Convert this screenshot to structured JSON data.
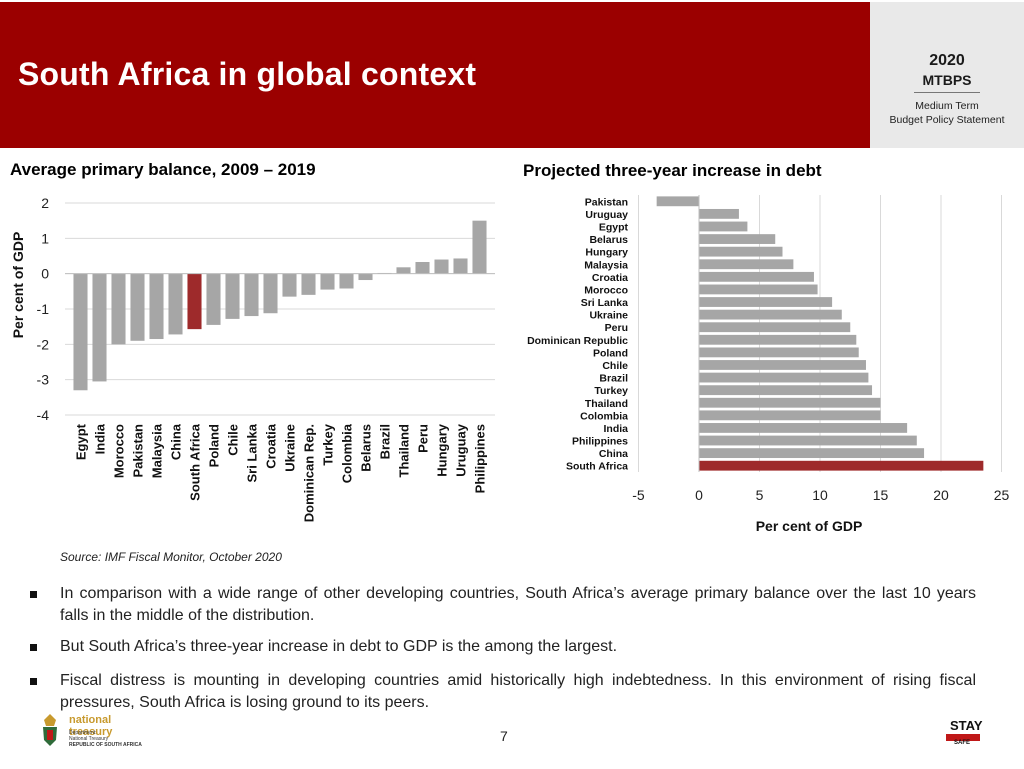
{
  "header": {
    "title": "South Africa in global context",
    "logo": {
      "year": "2020",
      "name": "MTBPS",
      "sub1": "Medium Term",
      "sub2": "Budget Policy Statement"
    }
  },
  "colors": {
    "header_red": "#9b0000",
    "bar_gray": "#a6a6a6",
    "highlight": "#9e2a2b"
  },
  "chart_data": [
    {
      "type": "bar",
      "title": "Average primary balance, 2009 – 2019",
      "ylabel": "Per cent of GDP",
      "xlabel": "",
      "ylim": [
        -4,
        2
      ],
      "yticks": [
        2,
        1,
        0,
        -1,
        -2,
        -3,
        -4
      ],
      "grid": true,
      "highlight": "South Africa",
      "categories": [
        "Egypt",
        "India",
        "Morocco",
        "Pakistan",
        "Malaysia",
        "China",
        "South Africa",
        "Poland",
        "Chile",
        "Sri Lanka",
        "Croatia",
        "Ukraine",
        "Dominican Rep.",
        "Turkey",
        "Colombia",
        "Belarus",
        "Brazil",
        "Thailand",
        "Peru",
        "Hungary",
        "Uruguay",
        "Philippines"
      ],
      "values": [
        -3.3,
        -3.05,
        -2.0,
        -1.9,
        -1.85,
        -1.72,
        -1.57,
        -1.45,
        -1.28,
        -1.2,
        -1.12,
        -0.65,
        -0.6,
        -0.45,
        -0.42,
        -0.18,
        0.02,
        0.18,
        0.33,
        0.4,
        0.43,
        1.5
      ]
    },
    {
      "type": "bar",
      "orientation": "horizontal",
      "title": "Projected three-year increase in debt",
      "xlabel": "Per cent of GDP",
      "ylabel": "",
      "xlim": [
        -5,
        25
      ],
      "xticks": [
        -5,
        0,
        5,
        10,
        15,
        20,
        25
      ],
      "grid": true,
      "highlight": "South Africa",
      "categories": [
        "Pakistan",
        "Uruguay",
        "Egypt",
        "Belarus",
        "Hungary",
        "Malaysia",
        "Croatia",
        "Morocco",
        "Sri Lanka",
        "Ukraine",
        "Peru",
        "Dominican Republic",
        "Poland",
        "Chile",
        "Brazil",
        "Turkey",
        "Thailand",
        "Colombia",
        "India",
        "Philippines",
        "China",
        "South Africa"
      ],
      "values": [
        -3.5,
        3.3,
        4.0,
        6.3,
        6.9,
        7.8,
        9.5,
        9.8,
        11.0,
        11.8,
        12.5,
        13.0,
        13.2,
        13.8,
        14.0,
        14.3,
        15.0,
        15.0,
        17.2,
        18.0,
        18.6,
        23.5
      ]
    }
  ],
  "source": "Source: IMF Fiscal Monitor, October 2020",
  "bullets": [
    "In comparison with a wide range of other developing countries, South Africa’s average primary balance over the last 10 years falls in the middle of the distribution.",
    "But South Africa’s three-year increase in debt to GDP is the among the largest.",
    "Fiscal distress is mounting in developing countries amid historically high indebtedness. In this environment of rising fiscal pressures, South Africa is losing ground to its peers."
  ],
  "footer": {
    "page_number": "7",
    "nt_name": "national treasury",
    "nt_line1": "Department:",
    "nt_line2": "National Treasury",
    "nt_line3": "REPUBLIC OF SOUTH AFRICA",
    "stay_logo_text": "STAY SAFE"
  }
}
